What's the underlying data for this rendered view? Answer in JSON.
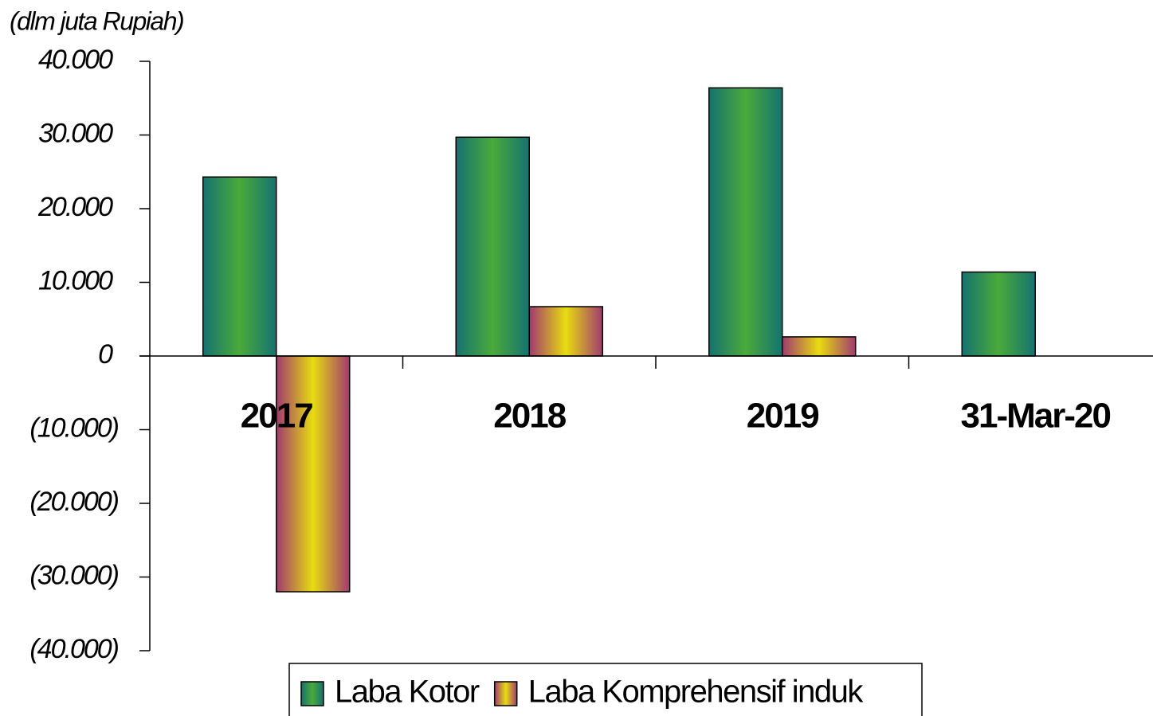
{
  "chart_data": {
    "type": "bar",
    "y_axis_label": "(dlm juta Rupiah)",
    "categories": [
      "2017",
      "2018",
      "2019",
      "31-Mar-20"
    ],
    "series": [
      {
        "name": "Laba Kotor",
        "color": "#4aaa3a",
        "values": [
          24300,
          29700,
          36400,
          11400
        ]
      },
      {
        "name": "Laba Komprehensif induk",
        "color": "#e8dc10",
        "values": [
          -32000,
          6700,
          2600,
          null
        ]
      }
    ],
    "ylim": [
      -40000,
      40000
    ],
    "yticks": [
      {
        "value": 40000,
        "label": "40.000"
      },
      {
        "value": 30000,
        "label": "30.000"
      },
      {
        "value": 20000,
        "label": "20.000"
      },
      {
        "value": 10000,
        "label": "10.000"
      },
      0,
      {
        "value": -10000,
        "label": "(10.000)"
      },
      {
        "value": -20000,
        "label": "(20.000)"
      },
      {
        "value": -30000,
        "label": "(30.000)"
      },
      {
        "value": -40000,
        "label": "(40.000)"
      }
    ]
  }
}
